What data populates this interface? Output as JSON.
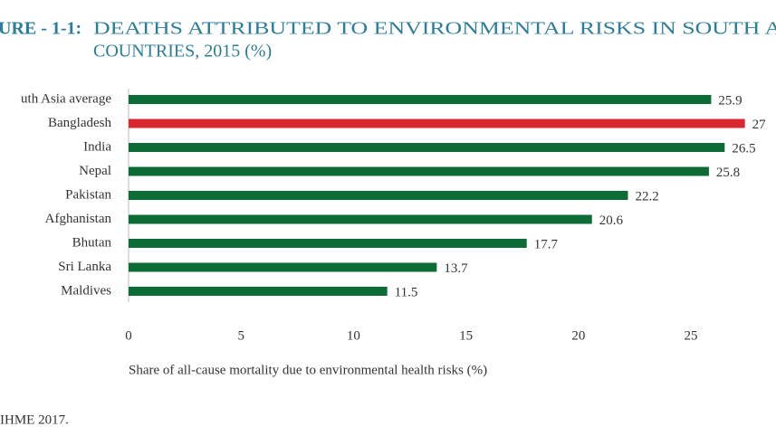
{
  "chart_data": {
    "type": "hbar",
    "title_label": "URE - 1-1:",
    "title": [
      "DEATHS ATTRIBUTED TO ENVIRONMENTAL RISKS IN SOUTH A",
      "COUNTRIES, 2015 (%)"
    ],
    "categories": [
      "uth Asia average",
      "Bangladesh",
      "India",
      "Nepal",
      "Pakistan",
      "Afghanistan",
      "Bhutan",
      "Sri Lanka",
      "Maldives"
    ],
    "values": [
      25.9,
      27.4,
      26.5,
      25.8,
      22.2,
      20.6,
      17.7,
      13.7,
      11.5
    ],
    "value_labels": [
      "25.9",
      "27",
      "26.5",
      "25.8",
      "22.2",
      "20.6",
      "17.7",
      "13.7",
      "11.5"
    ],
    "colors": [
      "#0d6b35",
      "#d9282f",
      "#0d6b35",
      "#0d6b35",
      "#0d6b35",
      "#0d6b35",
      "#0d6b35",
      "#0d6b35",
      "#0d6b35"
    ],
    "xlim": [
      0,
      28.5
    ],
    "xticks": [
      0,
      5,
      10,
      15,
      20,
      25
    ],
    "x_label": "Share of all-cause mortality due to environmental health risks (%)",
    "source": "IHME 2017."
  }
}
